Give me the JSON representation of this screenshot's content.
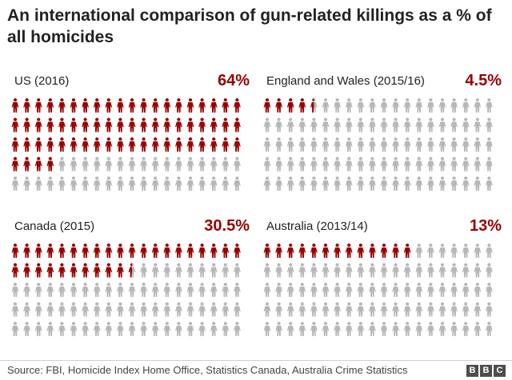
{
  "title": "An international comparison of gun-related killings as a % of all homicides",
  "colors": {
    "highlight": "#990000",
    "base": "#b7b7b7"
  },
  "chart_data": {
    "type": "pictogram",
    "title": "An international comparison of gun-related killings as a % of all homicides",
    "icons_per_chart": 100,
    "series": [
      {
        "name": "US (2016)",
        "value": 64,
        "value_label": "64%"
      },
      {
        "name": "England and Wales (2015/16)",
        "value": 4.5,
        "value_label": "4.5%"
      },
      {
        "name": "Canada (2015)",
        "value": 30.5,
        "value_label": "30.5%"
      },
      {
        "name": "Australia (2013/14)",
        "value": 13,
        "value_label": "13%"
      }
    ]
  },
  "source": "Source: FBI, Homicide Index Home Office, Statistics Canada, Australia Crime Statistics",
  "logo": [
    "B",
    "B",
    "C"
  ]
}
